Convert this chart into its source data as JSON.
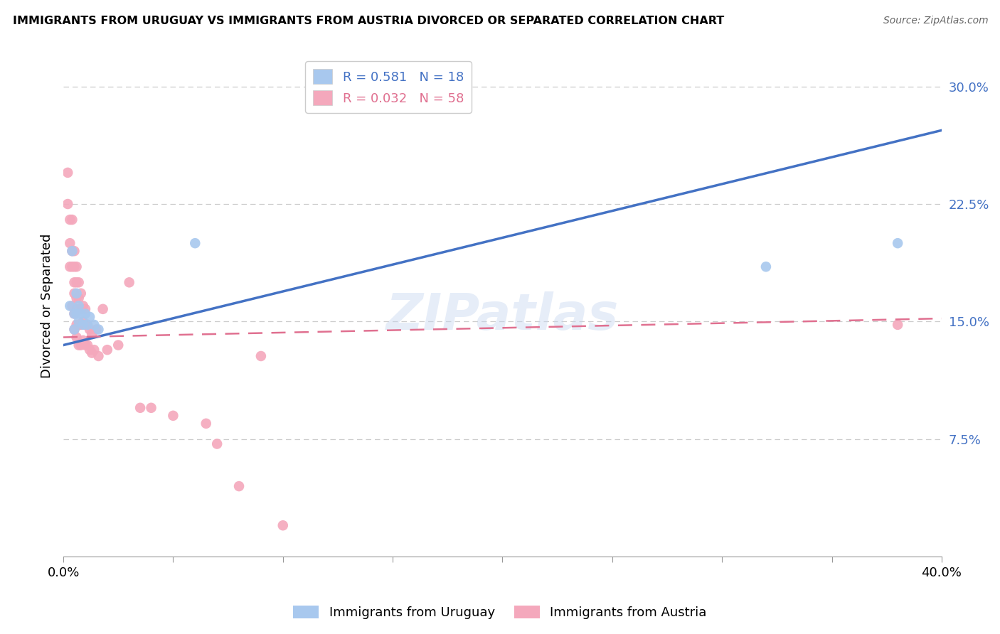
{
  "title": "IMMIGRANTS FROM URUGUAY VS IMMIGRANTS FROM AUSTRIA DIVORCED OR SEPARATED CORRELATION CHART",
  "source": "Source: ZipAtlas.com",
  "ylabel": "Divorced or Separated",
  "watermark": "ZIPatlas",
  "uruguay_R": 0.581,
  "uruguay_N": 18,
  "austria_R": 0.032,
  "austria_N": 58,
  "uruguay_color": "#A8C8EE",
  "austria_color": "#F4A8BC",
  "uruguay_line_color": "#4472C4",
  "austria_line_color": "#E07090",
  "xlim": [
    0.0,
    0.4
  ],
  "ylim": [
    0.0,
    0.32
  ],
  "uruguay_points_x": [
    0.003,
    0.004,
    0.005,
    0.005,
    0.006,
    0.006,
    0.007,
    0.007,
    0.008,
    0.009,
    0.01,
    0.011,
    0.012,
    0.014,
    0.016,
    0.06,
    0.32,
    0.38
  ],
  "uruguay_points_y": [
    0.16,
    0.195,
    0.155,
    0.145,
    0.168,
    0.155,
    0.16,
    0.15,
    0.155,
    0.148,
    0.155,
    0.148,
    0.153,
    0.148,
    0.145,
    0.2,
    0.185,
    0.2
  ],
  "austria_points_x": [
    0.002,
    0.002,
    0.003,
    0.003,
    0.003,
    0.004,
    0.004,
    0.004,
    0.004,
    0.005,
    0.005,
    0.005,
    0.005,
    0.005,
    0.005,
    0.006,
    0.006,
    0.006,
    0.006,
    0.006,
    0.006,
    0.007,
    0.007,
    0.007,
    0.007,
    0.007,
    0.008,
    0.008,
    0.008,
    0.008,
    0.009,
    0.009,
    0.009,
    0.01,
    0.01,
    0.01,
    0.011,
    0.011,
    0.012,
    0.012,
    0.013,
    0.013,
    0.014,
    0.015,
    0.016,
    0.018,
    0.02,
    0.025,
    0.03,
    0.035,
    0.04,
    0.05,
    0.065,
    0.07,
    0.08,
    0.09,
    0.1,
    0.38
  ],
  "austria_points_y": [
    0.245,
    0.225,
    0.215,
    0.2,
    0.185,
    0.215,
    0.195,
    0.185,
    0.16,
    0.195,
    0.185,
    0.175,
    0.168,
    0.155,
    0.145,
    0.185,
    0.175,
    0.165,
    0.158,
    0.148,
    0.14,
    0.175,
    0.165,
    0.158,
    0.148,
    0.135,
    0.168,
    0.158,
    0.148,
    0.135,
    0.16,
    0.15,
    0.138,
    0.158,
    0.148,
    0.135,
    0.148,
    0.135,
    0.145,
    0.132,
    0.142,
    0.13,
    0.132,
    0.145,
    0.128,
    0.158,
    0.132,
    0.135,
    0.175,
    0.095,
    0.095,
    0.09,
    0.085,
    0.072,
    0.045,
    0.128,
    0.02,
    0.148
  ],
  "ury_line_x0": 0.0,
  "ury_line_y0": 0.135,
  "ury_line_x1": 0.4,
  "ury_line_y1": 0.272,
  "aut_line_x0": 0.0,
  "aut_line_y0": 0.14,
  "aut_line_x1": 0.4,
  "aut_line_y1": 0.152
}
